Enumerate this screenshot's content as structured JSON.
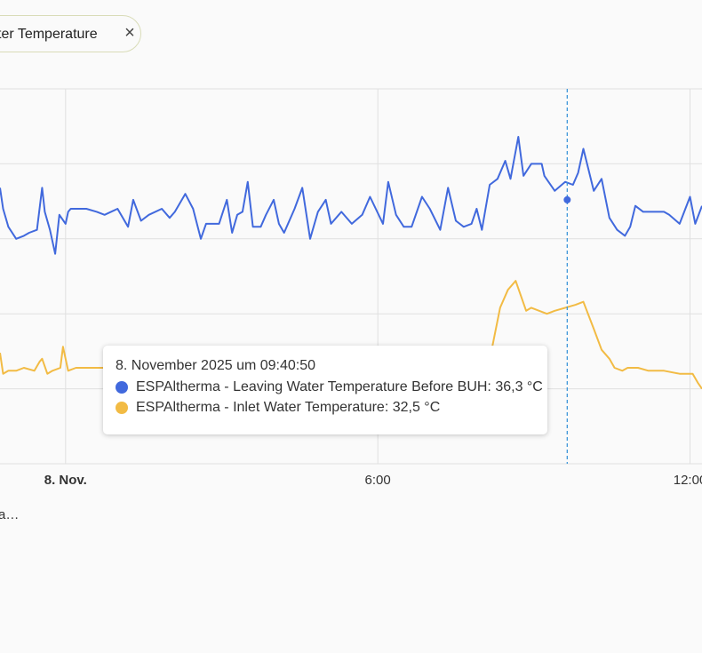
{
  "filter_chip": {
    "label": "ter Temperature",
    "close_symbol": "×"
  },
  "footer": {
    "text": "a…"
  },
  "colors": {
    "series_leaving": "#4169dd",
    "series_inlet": "#f2bb44",
    "grid": "#e0e0e0",
    "cursor": "#3f97da"
  },
  "chart_data": {
    "type": "line",
    "title": "",
    "xlabel": "",
    "ylabel": "",
    "x_tick_labels": [
      {
        "t": 0,
        "label": "8. Nov.",
        "bold": true
      },
      {
        "t": 6,
        "label": "6:00",
        "bold": false
      },
      {
        "t": 12,
        "label": "12:00",
        "bold": false
      }
    ],
    "x_range_hours": [
      -1.26,
      12.23
    ],
    "y_gridlines": [
      40,
      37.5,
      35,
      32.5,
      30,
      27.5
    ],
    "ylim": [
      27.5,
      40
    ],
    "grid": true,
    "series": [
      {
        "name": "ESPAltherma - Leaving Water Temperature Before BUH",
        "color": "#4169dd",
        "points": [
          [
            -1.26,
            36.7
          ],
          [
            -1.2,
            36.0
          ],
          [
            -1.1,
            35.4
          ],
          [
            -0.95,
            35.0
          ],
          [
            -0.8,
            35.1
          ],
          [
            -0.7,
            35.2
          ],
          [
            -0.55,
            35.3
          ],
          [
            -0.45,
            36.7
          ],
          [
            -0.4,
            35.9
          ],
          [
            -0.3,
            35.3
          ],
          [
            -0.2,
            34.5
          ],
          [
            -0.12,
            35.8
          ],
          [
            0.0,
            35.5
          ],
          [
            0.05,
            35.9
          ],
          [
            0.1,
            36.0
          ],
          [
            0.4,
            36.0
          ],
          [
            0.6,
            35.9
          ],
          [
            0.75,
            35.8
          ],
          [
            1.0,
            36.0
          ],
          [
            1.2,
            35.4
          ],
          [
            1.3,
            36.3
          ],
          [
            1.45,
            35.6
          ],
          [
            1.6,
            35.8
          ],
          [
            1.85,
            36.0
          ],
          [
            2.0,
            35.7
          ],
          [
            2.1,
            35.9
          ],
          [
            2.3,
            36.5
          ],
          [
            2.45,
            36.0
          ],
          [
            2.6,
            35.0
          ],
          [
            2.7,
            35.5
          ],
          [
            2.95,
            35.5
          ],
          [
            3.1,
            36.3
          ],
          [
            3.2,
            35.2
          ],
          [
            3.3,
            35.8
          ],
          [
            3.4,
            35.9
          ],
          [
            3.5,
            36.9
          ],
          [
            3.6,
            35.4
          ],
          [
            3.75,
            35.4
          ],
          [
            3.85,
            35.8
          ],
          [
            4.0,
            36.3
          ],
          [
            4.1,
            35.5
          ],
          [
            4.2,
            35.2
          ],
          [
            4.4,
            36.0
          ],
          [
            4.55,
            36.7
          ],
          [
            4.7,
            35.0
          ],
          [
            4.85,
            35.9
          ],
          [
            5.0,
            36.3
          ],
          [
            5.1,
            35.5
          ],
          [
            5.3,
            35.9
          ],
          [
            5.5,
            35.5
          ],
          [
            5.7,
            35.8
          ],
          [
            5.85,
            36.4
          ],
          [
            6.1,
            35.5
          ],
          [
            6.2,
            36.9
          ],
          [
            6.35,
            35.8
          ],
          [
            6.5,
            35.4
          ],
          [
            6.65,
            35.4
          ],
          [
            6.85,
            36.4
          ],
          [
            7.0,
            36.0
          ],
          [
            7.2,
            35.3
          ],
          [
            7.35,
            36.7
          ],
          [
            7.5,
            35.6
          ],
          [
            7.65,
            35.4
          ],
          [
            7.8,
            35.5
          ],
          [
            7.9,
            36.0
          ],
          [
            8.0,
            35.3
          ],
          [
            8.15,
            36.8
          ],
          [
            8.3,
            37.0
          ],
          [
            8.45,
            37.6
          ],
          [
            8.55,
            37.0
          ],
          [
            8.7,
            38.4
          ],
          [
            8.8,
            37.1
          ],
          [
            8.95,
            37.5
          ],
          [
            9.15,
            37.5
          ],
          [
            9.2,
            37.1
          ],
          [
            9.4,
            36.6
          ],
          [
            9.6,
            36.9
          ],
          [
            9.75,
            36.8
          ],
          [
            9.85,
            37.2
          ],
          [
            9.95,
            38.0
          ],
          [
            10.15,
            36.6
          ],
          [
            10.3,
            37.0
          ],
          [
            10.45,
            35.7
          ],
          [
            10.6,
            35.3
          ],
          [
            10.75,
            35.1
          ],
          [
            10.85,
            35.4
          ],
          [
            10.95,
            36.1
          ],
          [
            11.1,
            35.9
          ],
          [
            11.3,
            35.9
          ],
          [
            11.5,
            35.9
          ],
          [
            11.6,
            35.8
          ],
          [
            11.8,
            35.5
          ],
          [
            12.0,
            36.4
          ],
          [
            12.1,
            35.5
          ],
          [
            12.23,
            36.1
          ]
        ]
      },
      {
        "name": "ESPAltherma - Inlet Water Temperature",
        "color": "#f2bb44",
        "points": [
          [
            -1.26,
            31.2
          ],
          [
            -1.2,
            30.5
          ],
          [
            -1.1,
            30.6
          ],
          [
            -0.95,
            30.6
          ],
          [
            -0.8,
            30.7
          ],
          [
            -0.6,
            30.6
          ],
          [
            -0.5,
            30.9
          ],
          [
            -0.45,
            31.0
          ],
          [
            -0.35,
            30.5
          ],
          [
            -0.25,
            30.6
          ],
          [
            -0.1,
            30.7
          ],
          [
            -0.05,
            31.4
          ],
          [
            0.05,
            30.6
          ],
          [
            0.2,
            30.7
          ],
          [
            0.6,
            30.7
          ],
          [
            1.0,
            30.7
          ],
          [
            2.5,
            30.7
          ],
          [
            3.0,
            30.7
          ],
          [
            5.0,
            30.7
          ],
          [
            6.0,
            30.7
          ],
          [
            7.0,
            30.7
          ],
          [
            7.5,
            30.7
          ],
          [
            8.0,
            30.7
          ],
          [
            8.2,
            31.4
          ],
          [
            8.35,
            32.7
          ],
          [
            8.5,
            33.3
          ],
          [
            8.65,
            33.6
          ],
          [
            8.85,
            32.6
          ],
          [
            8.95,
            32.7
          ],
          [
            9.25,
            32.5
          ],
          [
            9.4,
            32.6
          ],
          [
            9.6,
            32.7
          ],
          [
            9.8,
            32.8
          ],
          [
            9.95,
            32.9
          ],
          [
            10.15,
            32.0
          ],
          [
            10.3,
            31.3
          ],
          [
            10.45,
            31.0
          ],
          [
            10.55,
            30.7
          ],
          [
            10.7,
            30.6
          ],
          [
            10.8,
            30.7
          ],
          [
            11.0,
            30.7
          ],
          [
            11.2,
            30.6
          ],
          [
            11.5,
            30.6
          ],
          [
            11.8,
            30.5
          ],
          [
            12.05,
            30.5
          ],
          [
            12.15,
            30.2
          ],
          [
            12.23,
            30.0
          ]
        ]
      }
    ],
    "cursor": {
      "t": 9.64,
      "marker_value": 36.3,
      "marker_series": 0
    },
    "tooltip": {
      "title": "8. November 2025 um 09:40:50",
      "rows": [
        {
          "text": "ESPAltherma - Leaving Water Temperature Before BUH: 36,3 °C",
          "color": "#4169dd"
        },
        {
          "text": "ESPAltherma - Inlet Water Temperature: 32,5 °C",
          "color": "#f2bb44"
        }
      ]
    }
  }
}
